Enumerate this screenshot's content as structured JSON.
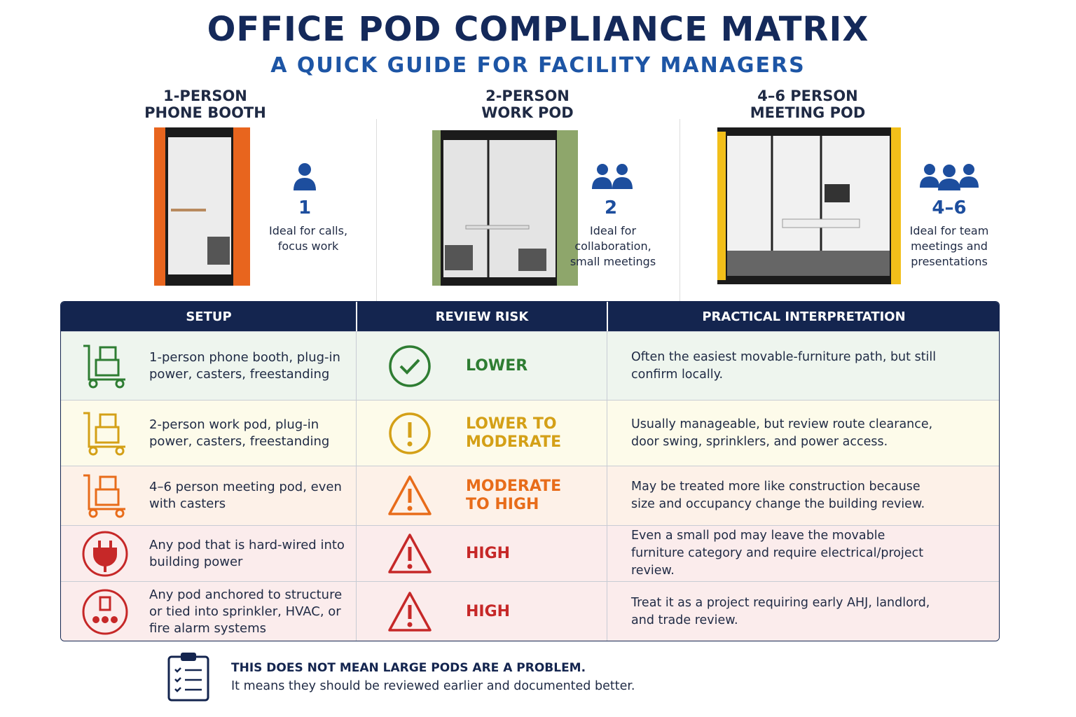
{
  "header": {
    "title": "OFFICE POD COMPLIANCE MATRIX",
    "subtitle": "A QUICK GUIDE FOR FACILITY MANAGERS"
  },
  "pods": [
    {
      "title_lines": [
        "1-PERSON",
        "PHONE BOOTH"
      ],
      "count": "1",
      "description_lines": [
        "Ideal for calls,",
        "focus work"
      ]
    },
    {
      "title_lines": [
        "2-PERSON",
        "WORK POD"
      ],
      "count": "2",
      "description_lines": [
        "Ideal for",
        "collaboration,",
        "small meetings"
      ]
    },
    {
      "title_lines": [
        "4–6 PERSON",
        "MEETING POD"
      ],
      "count": "4–6",
      "description_lines": [
        "Ideal for team",
        "meetings and",
        "presentations"
      ]
    }
  ],
  "table": {
    "headers": [
      "SETUP",
      "REVIEW RISK",
      "PRACTICAL INTERPRETATION"
    ],
    "rows": [
      {
        "setup": "1-person phone booth, plug-in power, casters, freestanding",
        "risk": "LOWER",
        "interpretation": "Often the easiest movable-furniture path, but still confirm locally."
      },
      {
        "setup": "2-person work pod, plug-in power, casters, freestanding",
        "risk": "LOWER TO MODERATE",
        "interpretation": "Usually manageable, but review route clearance, door swing, sprinklers, and power access."
      },
      {
        "setup": "4–6 person meeting pod, even with casters",
        "risk": "MODERATE TO HIGH",
        "interpretation": "May be treated more like construction because size and occupancy change the building review."
      },
      {
        "setup": "Any pod that is hard-wired into building power",
        "risk": "HIGH",
        "interpretation": "Even a small pod may leave the movable furniture category and require electrical/project review."
      },
      {
        "setup": "Any pod anchored to structure or tied into sprinkler, HVAC, or fire alarm systems",
        "risk": "HIGH",
        "interpretation": "Treat it as a project requiring early AHJ, landlord, and trade review."
      }
    ]
  },
  "footer": {
    "title": "THIS DOES NOT MEAN LARGE PODS ARE A PROBLEM.",
    "text": "It means they should be reviewed earlier and documented better."
  }
}
